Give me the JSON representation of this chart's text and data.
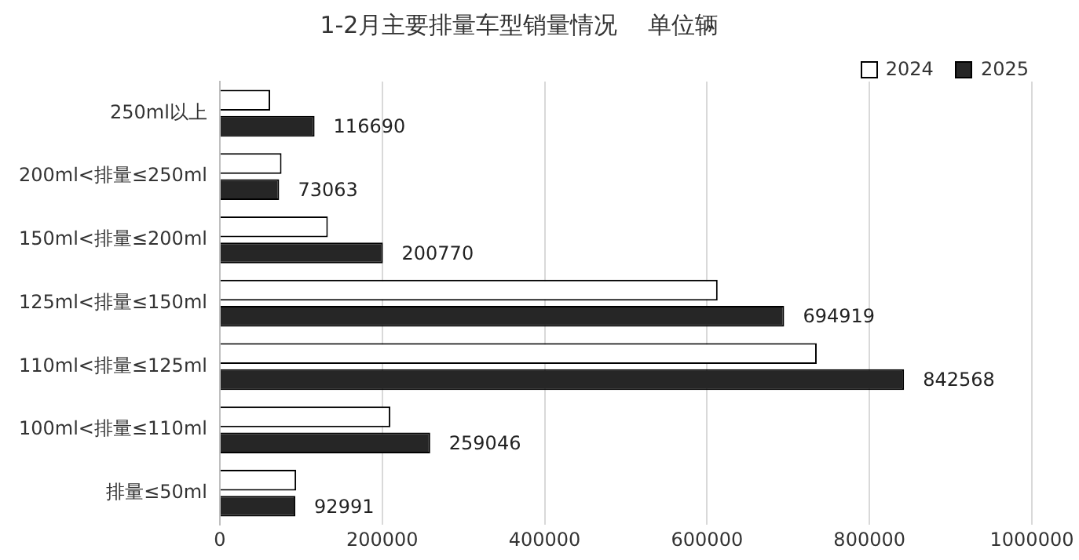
{
  "chart_data": {
    "type": "bar",
    "orientation": "horizontal",
    "title": "1-2月主要排量车型销量情况    单位辆",
    "categories": [
      "250ml以上",
      "200ml<排量≤250ml",
      "150ml<排量≤200ml",
      "125ml<排量≤150ml",
      "110ml<排量≤125ml",
      "100ml<排量≤110ml",
      "排量≤50ml"
    ],
    "series": [
      {
        "name": "2024",
        "color": "#ffffff",
        "values": [
          62000,
          76000,
          133000,
          613000,
          735000,
          210000,
          94000
        ]
      },
      {
        "name": "2025",
        "color": "#262626",
        "values": [
          116690,
          73063,
          200770,
          694919,
          842568,
          259046,
          92991
        ],
        "value_labels": [
          "116690",
          "73063",
          "200770",
          "694919",
          "842568",
          "259046",
          "92991"
        ]
      }
    ],
    "xlim": [
      0,
      1000000
    ],
    "xticks": [
      0,
      200000,
      400000,
      600000,
      800000,
      1000000
    ],
    "grid": "x",
    "legend": "top right"
  }
}
